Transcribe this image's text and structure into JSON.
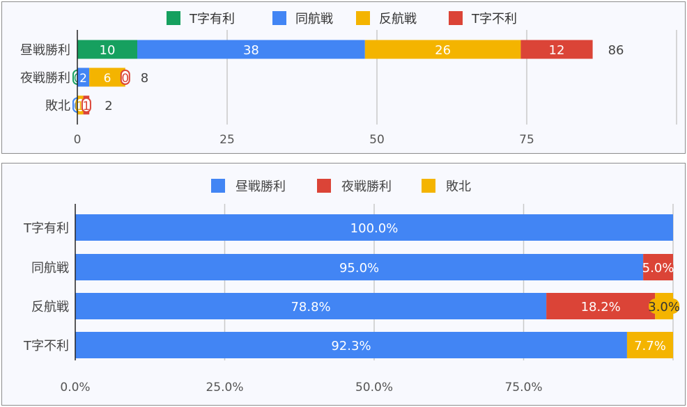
{
  "chart_data": [
    {
      "type": "bar",
      "orientation": "horizontal",
      "stacked": true,
      "categories": [
        "昼戦勝利",
        "夜戦勝利",
        "敗北"
      ],
      "series": [
        {
          "name": "T字有利",
          "color": "#16a05f",
          "values": [
            10,
            0,
            0
          ]
        },
        {
          "name": "同航戦",
          "color": "#4285f4",
          "values": [
            38,
            2,
            0
          ]
        },
        {
          "name": "反航戦",
          "color": "#f4b400",
          "values": [
            26,
            6,
            1
          ]
        },
        {
          "name": "T字不利",
          "color": "#db4437",
          "values": [
            12,
            0,
            1
          ]
        }
      ],
      "totals": [
        86,
        8,
        2
      ],
      "xlim": [
        0,
        100
      ],
      "xticks": [
        0,
        25,
        50,
        75
      ],
      "xtick_labels": [
        "0",
        "25",
        "50",
        "75"
      ],
      "legend_position": "top",
      "grid": true
    },
    {
      "type": "bar",
      "orientation": "horizontal",
      "stacked": true,
      "normalized": true,
      "categories": [
        "T字有利",
        "同航戦",
        "反航戦",
        "T字不利"
      ],
      "series": [
        {
          "name": "昼戦勝利",
          "color": "#4285f4",
          "values": [
            100.0,
            95.0,
            78.8,
            92.3
          ],
          "labels": [
            "100.0%",
            "95.0%",
            "78.8%",
            "92.3%"
          ]
        },
        {
          "name": "夜戦勝利",
          "color": "#db4437",
          "values": [
            0,
            5.0,
            18.2,
            0
          ],
          "labels": [
            "",
            "5.0%",
            "18.2%",
            ""
          ]
        },
        {
          "name": "敗北",
          "color": "#f4b400",
          "values": [
            0,
            0,
            3.0,
            7.7
          ],
          "labels": [
            "",
            "",
            "3.0%",
            "7.7%"
          ]
        }
      ],
      "xlim": [
        0,
        100
      ],
      "xticks": [
        0,
        25,
        50,
        75
      ],
      "xtick_labels": [
        "0.0%",
        "25.0%",
        "50.0%",
        "75.0%"
      ],
      "legend_position": "top",
      "grid": true
    }
  ]
}
